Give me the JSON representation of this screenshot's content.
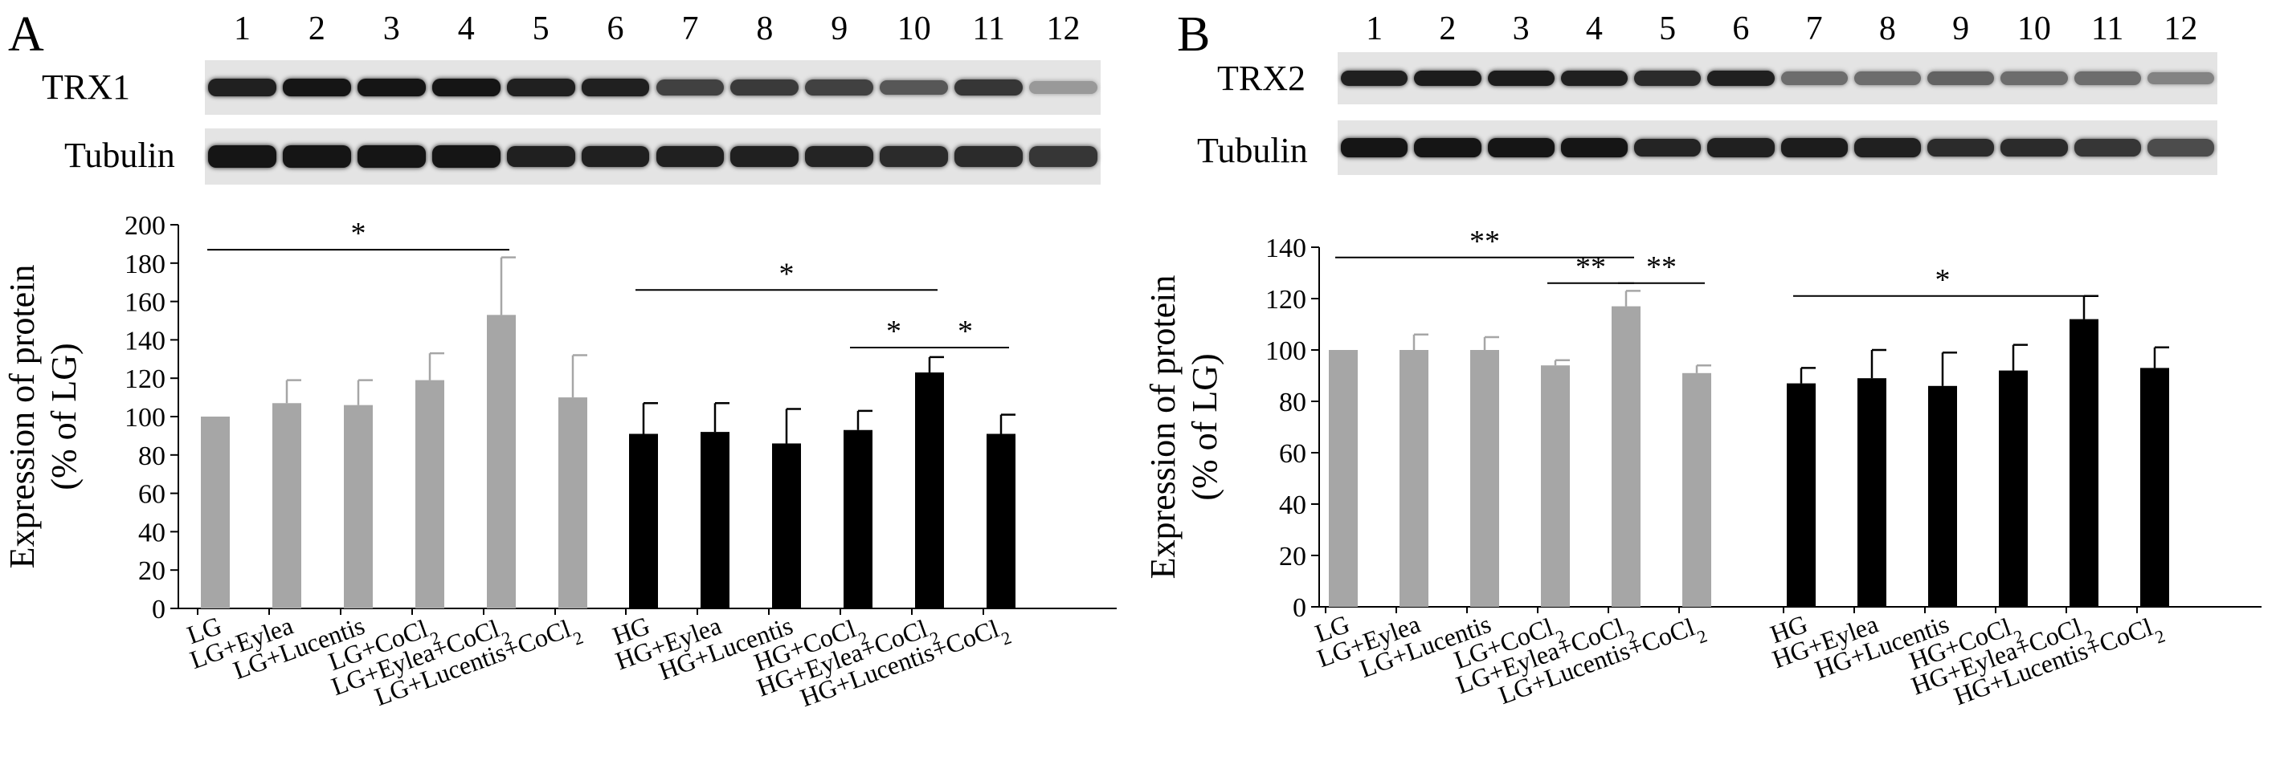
{
  "panels": [
    {
      "letter": "A",
      "blots": [
        {
          "protein": "TRX1",
          "intensity": [
            0.9,
            0.95,
            0.95,
            0.95,
            0.9,
            0.9,
            0.75,
            0.78,
            0.75,
            0.65,
            0.8,
            0.35
          ]
        },
        {
          "protein": "Tubulin",
          "intensity": [
            0.95,
            0.95,
            0.95,
            0.95,
            0.9,
            0.9,
            0.9,
            0.9,
            0.88,
            0.85,
            0.85,
            0.8
          ]
        }
      ]
    },
    {
      "letter": "B",
      "blots": [
        {
          "protein": "TRX2",
          "intensity": [
            0.9,
            0.92,
            0.92,
            0.9,
            0.85,
            0.9,
            0.55,
            0.55,
            0.6,
            0.55,
            0.55,
            0.45
          ]
        },
        {
          "protein": "Tubulin",
          "intensity": [
            0.95,
            0.95,
            0.95,
            0.95,
            0.88,
            0.9,
            0.92,
            0.9,
            0.85,
            0.85,
            0.8,
            0.7
          ]
        }
      ]
    }
  ],
  "lanes": [
    "1",
    "2",
    "3",
    "4",
    "5",
    "6",
    "7",
    "8",
    "9",
    "10",
    "11",
    "12"
  ],
  "colors": {
    "LG": "#a6a6a6",
    "HG": "#000000"
  },
  "chart_data": [
    {
      "panel": "A",
      "type": "bar",
      "ylabel": [
        "Expression of protein",
        "(% of LG)"
      ],
      "ylim": [
        0,
        200
      ],
      "yticks": [
        0,
        20,
        40,
        60,
        80,
        100,
        120,
        140,
        160,
        180,
        200
      ],
      "groups": [
        {
          "color": "LG",
          "bars": [
            {
              "label": "LG",
              "value": 100,
              "error": 0
            },
            {
              "label": "LG+Eylea",
              "value": 107,
              "error": 12
            },
            {
              "label": "LG+Lucentis",
              "value": 106,
              "error": 13
            },
            {
              "label": "LG+CoCl2",
              "value": 119,
              "error": 14
            },
            {
              "label": "LG+Eylea+CoCl2",
              "value": 153,
              "error": 30
            },
            {
              "label": "LG+Lucentis+CoCl2",
              "value": 110,
              "error": 22
            }
          ]
        },
        {
          "color": "HG",
          "bars": [
            {
              "label": "HG",
              "value": 91,
              "error": 16
            },
            {
              "label": "HG+Eylea",
              "value": 92,
              "error": 15
            },
            {
              "label": "HG+Lucentis",
              "value": 86,
              "error": 18
            },
            {
              "label": "HG+CoCl2",
              "value": 93,
              "error": 10
            },
            {
              "label": "HG+Eylea+CoCl2",
              "value": 123,
              "error": 8
            },
            {
              "label": "HG+Lucentis+CoCl2",
              "value": 91,
              "error": 10
            }
          ]
        }
      ],
      "significance": [
        {
          "from": "LG",
          "to": "LG+Eylea+CoCl2",
          "mark": "*",
          "at": 187
        },
        {
          "from": "HG",
          "to": "HG+Eylea+CoCl2",
          "mark": "*",
          "at": 166
        },
        {
          "from": "HG+CoCl2",
          "to": "HG+Eylea+CoCl2",
          "mark": "*",
          "at": 136
        },
        {
          "from": "HG+Eylea+CoCl2",
          "to": "HG+Lucentis+CoCl2",
          "mark": "*",
          "at": 136
        }
      ]
    },
    {
      "panel": "B",
      "type": "bar",
      "ylabel": [
        "Expression of protein",
        "(% of LG)"
      ],
      "ylim": [
        0,
        140
      ],
      "yticks": [
        0,
        20,
        40,
        60,
        80,
        100,
        120,
        140
      ],
      "groups": [
        {
          "color": "LG",
          "bars": [
            {
              "label": "LG",
              "value": 100,
              "error": 0
            },
            {
              "label": "LG+Eylea",
              "value": 100,
              "error": 6
            },
            {
              "label": "LG+Lucentis",
              "value": 100,
              "error": 5
            },
            {
              "label": "LG+CoCl2",
              "value": 94,
              "error": 2
            },
            {
              "label": "LG+Eylea+CoCl2",
              "value": 117,
              "error": 6
            },
            {
              "label": "LG+Lucentis+CoCl2",
              "value": 91,
              "error": 3
            }
          ]
        },
        {
          "color": "HG",
          "bars": [
            {
              "label": "HG",
              "value": 87,
              "error": 6
            },
            {
              "label": "HG+Eylea",
              "value": 89,
              "error": 11
            },
            {
              "label": "HG+Lucentis",
              "value": 86,
              "error": 13
            },
            {
              "label": "HG+CoCl2",
              "value": 92,
              "error": 10
            },
            {
              "label": "HG+Eylea+CoCl2",
              "value": 112,
              "error": 9
            },
            {
              "label": "HG+Lucentis+CoCl2",
              "value": 93,
              "error": 8
            }
          ]
        }
      ],
      "significance": [
        {
          "from": "LG",
          "to": "LG+Eylea+CoCl2",
          "mark": "**",
          "at": 136
        },
        {
          "from": "LG+CoCl2",
          "to": "LG+Eylea+CoCl2",
          "mark": "**",
          "at": 126
        },
        {
          "from": "LG+Eylea+CoCl2",
          "to": "LG+Lucentis+CoCl2",
          "mark": "**",
          "at": 126
        },
        {
          "from": "HG",
          "to": "HG+Eylea+CoCl2",
          "mark": "*",
          "at": 121
        }
      ]
    }
  ]
}
